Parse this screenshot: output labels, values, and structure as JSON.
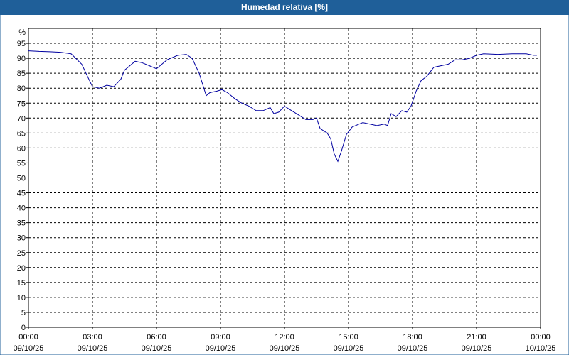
{
  "chart_data": {
    "type": "line",
    "title": "Humedad relativa [%]",
    "y_label": "%",
    "x": [
      0,
      0.5,
      1,
      1.5,
      2,
      2.5,
      2.83,
      3,
      3.33,
      3.67,
      4,
      4.33,
      4.5,
      5,
      5.33,
      5.67,
      6,
      6.5,
      7,
      7.4,
      7.67,
      8,
      8.33,
      8.5,
      8.83,
      9.07,
      9.33,
      9.67,
      10,
      10.33,
      10.67,
      11,
      11.33,
      11.5,
      11.73,
      12,
      12.33,
      12.67,
      13,
      13.33,
      13.5,
      13.67,
      14,
      14.17,
      14.33,
      14.5,
      14.67,
      14.9,
      15.17,
      15.5,
      15.67,
      16,
      16.33,
      16.67,
      16.83,
      17,
      17.23,
      17.5,
      17.73,
      17.93,
      18.17,
      18.4,
      18.67,
      19,
      19.33,
      19.67,
      20,
      20.33,
      20.67,
      21,
      21.33,
      22,
      22.67,
      23.33,
      23.67,
      23.83
    ],
    "series": [
      {
        "name": "Humedad relativa",
        "color": "#0000a0",
        "values": [
          92.5,
          92.3,
          92.2,
          92,
          91.5,
          88,
          83,
          80.5,
          80,
          81,
          80.5,
          83,
          86,
          89,
          88.5,
          87.5,
          86.5,
          89.5,
          91,
          91.3,
          90,
          85,
          77.5,
          78.5,
          79,
          79.5,
          78.5,
          76.5,
          75,
          74,
          72.5,
          72.5,
          73.5,
          71.5,
          72,
          74,
          72.5,
          71,
          69.5,
          69.5,
          70,
          66.5,
          65,
          63,
          58,
          55.5,
          59,
          64.5,
          67,
          68,
          68.5,
          68,
          67.5,
          68,
          67.5,
          71.5,
          70.5,
          72.5,
          72,
          74,
          79,
          82.5,
          84,
          87,
          87.5,
          88,
          89.5,
          89.5,
          90,
          91,
          91.5,
          91.3,
          91.5,
          91.5,
          91,
          91
        ]
      }
    ],
    "xlim": [
      0,
      24
    ],
    "xticks": [
      {
        "value": 0,
        "label": [
          "00:00",
          "09/10/25"
        ]
      },
      {
        "value": 3,
        "label": [
          "03:00",
          "09/10/25"
        ]
      },
      {
        "value": 6,
        "label": [
          "06:00",
          "09/10/25"
        ]
      },
      {
        "value": 9,
        "label": [
          "09:00",
          "09/10/25"
        ]
      },
      {
        "value": 12,
        "label": [
          "12:00",
          "09/10/25"
        ]
      },
      {
        "value": 15,
        "label": [
          "15:00",
          "09/10/25"
        ]
      },
      {
        "value": 18,
        "label": [
          "18:00",
          "09/10/25"
        ]
      },
      {
        "value": 21,
        "label": [
          "21:00",
          "09/10/25"
        ]
      },
      {
        "value": 24,
        "label": [
          "00:00",
          "10/10/25"
        ]
      }
    ],
    "ylim": [
      0,
      100
    ],
    "yticks": [
      0,
      5,
      10,
      15,
      20,
      25,
      30,
      35,
      40,
      45,
      50,
      55,
      60,
      65,
      70,
      75,
      80,
      85,
      90,
      95
    ],
    "grid": true
  }
}
